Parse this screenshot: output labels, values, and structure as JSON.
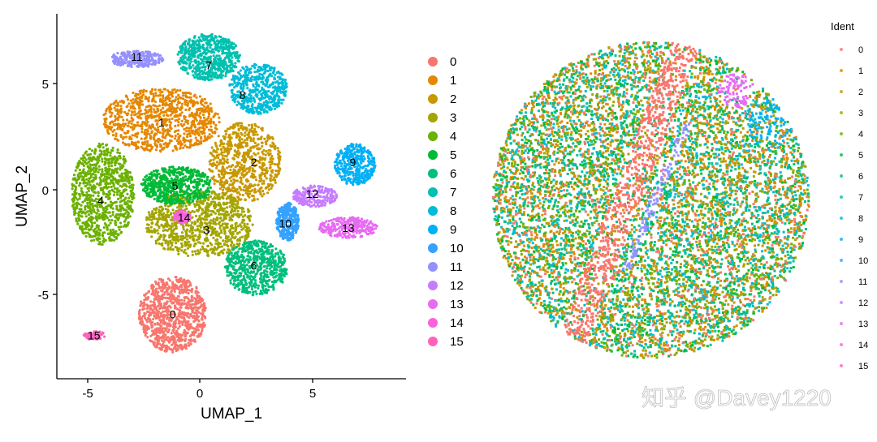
{
  "chart_data": [
    {
      "type": "scatter",
      "title": "",
      "xlabel": "UMAP_1",
      "ylabel": "UMAP_2",
      "xlim": [
        -6.3,
        9.1
      ],
      "ylim": [
        -9.1,
        8.2
      ],
      "xticks": [
        -5,
        0,
        5
      ],
      "yticks": [
        -5,
        0,
        5
      ],
      "grid": false,
      "legend_position": "right",
      "legend": [
        "0",
        "1",
        "2",
        "3",
        "4",
        "5",
        "6",
        "7",
        "8",
        "9",
        "10",
        "11",
        "12",
        "13",
        "14",
        "15"
      ],
      "clusters": [
        {
          "id": "0",
          "label": "0",
          "color": "#F8766D",
          "cx": -1.2,
          "cy": -5.9,
          "rx": 1.5,
          "ry": 1.8,
          "n": 900
        },
        {
          "id": "1",
          "label": "1",
          "color": "#E58700",
          "cx": -1.7,
          "cy": 3.3,
          "rx": 2.6,
          "ry": 1.5,
          "n": 900
        },
        {
          "id": "2",
          "label": "2",
          "color": "#C99800",
          "cx": 2.0,
          "cy": 1.3,
          "rx": 1.6,
          "ry": 1.9,
          "n": 700
        },
        {
          "id": "3",
          "label": "3",
          "color": "#A3A500",
          "cx": 0.0,
          "cy": -1.6,
          "rx": 2.4,
          "ry": 1.6,
          "n": 900
        },
        {
          "id": "4",
          "label": "4",
          "color": "#6BB100",
          "cx": -4.3,
          "cy": -0.2,
          "rx": 1.4,
          "ry": 2.4,
          "n": 900
        },
        {
          "id": "5",
          "label": "5",
          "color": "#00BA38",
          "cx": -1.0,
          "cy": 0.2,
          "rx": 1.6,
          "ry": 0.9,
          "n": 600
        },
        {
          "id": "6",
          "label": "6",
          "color": "#00BF7D",
          "cx": 2.5,
          "cy": -3.7,
          "rx": 1.4,
          "ry": 1.3,
          "n": 600
        },
        {
          "id": "7",
          "label": "7",
          "color": "#00C0AF",
          "cx": 0.4,
          "cy": 6.3,
          "rx": 1.4,
          "ry": 1.1,
          "n": 600
        },
        {
          "id": "8",
          "label": "8",
          "color": "#00BCD8",
          "cx": 2.6,
          "cy": 4.8,
          "rx": 1.3,
          "ry": 1.2,
          "n": 500
        },
        {
          "id": "9",
          "label": "9",
          "color": "#00B0F6",
          "cx": 6.9,
          "cy": 1.2,
          "rx": 0.9,
          "ry": 1.0,
          "n": 350
        },
        {
          "id": "10",
          "label": "10",
          "color": "#35A2FF",
          "cx": 3.9,
          "cy": -1.5,
          "rx": 0.5,
          "ry": 0.9,
          "n": 300
        },
        {
          "id": "11",
          "label": "11",
          "color": "#9590FF",
          "cx": -2.8,
          "cy": 6.2,
          "rx": 1.2,
          "ry": 0.4,
          "n": 250
        },
        {
          "id": "12",
          "label": "12",
          "color": "#C77CFF",
          "cx": 5.1,
          "cy": -0.3,
          "rx": 1.0,
          "ry": 0.5,
          "n": 220
        },
        {
          "id": "13",
          "label": "13",
          "color": "#E76BF3",
          "cx": 6.6,
          "cy": -1.8,
          "rx": 1.3,
          "ry": 0.5,
          "n": 260
        },
        {
          "id": "14",
          "label": "14",
          "color": "#FA62DB",
          "cx": -0.8,
          "cy": -1.3,
          "rx": 0.4,
          "ry": 0.3,
          "n": 80
        },
        {
          "id": "15",
          "label": "15",
          "color": "#FF62BC",
          "cx": -4.7,
          "cy": -6.9,
          "rx": 0.5,
          "ry": 0.2,
          "n": 80
        }
      ],
      "label_positions": [
        {
          "id": "0",
          "x": -1.2,
          "y": -5.9
        },
        {
          "id": "1",
          "x": -1.7,
          "y": 3.2
        },
        {
          "id": "2",
          "x": 2.4,
          "y": 1.3
        },
        {
          "id": "3",
          "x": 0.3,
          "y": -1.9
        },
        {
          "id": "4",
          "x": -4.4,
          "y": -0.5
        },
        {
          "id": "5",
          "x": -1.1,
          "y": 0.2
        },
        {
          "id": "6",
          "x": 2.4,
          "y": -3.6
        },
        {
          "id": "7",
          "x": 0.4,
          "y": 5.9
        },
        {
          "id": "8",
          "x": 1.9,
          "y": 4.5
        },
        {
          "id": "9",
          "x": 6.8,
          "y": 1.3
        },
        {
          "id": "10",
          "x": 3.8,
          "y": -1.6
        },
        {
          "id": "11",
          "x": -2.8,
          "y": 6.3
        },
        {
          "id": "12",
          "x": 5.0,
          "y": -0.2
        },
        {
          "id": "13",
          "x": 6.6,
          "y": -1.8
        },
        {
          "id": "14",
          "x": -0.7,
          "y": -1.3
        },
        {
          "id": "15",
          "x": -4.7,
          "y": -6.9
        }
      ]
    },
    {
      "type": "scatter",
      "title": "",
      "description": "Spatial plot of cells colored by cluster identity, circular tissue section",
      "legend_title": "Ident",
      "legend": [
        "0",
        "1",
        "2",
        "3",
        "4",
        "5",
        "6",
        "7",
        "8",
        "9",
        "10",
        "11",
        "12",
        "13",
        "14",
        "15"
      ],
      "grid": false,
      "axes_visible": false,
      "legend_position": "right"
    }
  ],
  "umap": {
    "xlabel": "UMAP_1",
    "ylabel": "UMAP_2",
    "xtick_labels": [
      "-5",
      "0",
      "5"
    ],
    "ytick_labels": [
      "5",
      "0",
      "-5"
    ]
  },
  "legend1": {
    "items": [
      {
        "label": "0",
        "color": "#F8766D"
      },
      {
        "label": "1",
        "color": "#E58700"
      },
      {
        "label": "2",
        "color": "#C99800"
      },
      {
        "label": "3",
        "color": "#A3A500"
      },
      {
        "label": "4",
        "color": "#6BB100"
      },
      {
        "label": "5",
        "color": "#00BA38"
      },
      {
        "label": "6",
        "color": "#00BF7D"
      },
      {
        "label": "7",
        "color": "#00C0AF"
      },
      {
        "label": "8",
        "color": "#00BCD8"
      },
      {
        "label": "9",
        "color": "#00B0F6"
      },
      {
        "label": "10",
        "color": "#35A2FF"
      },
      {
        "label": "11",
        "color": "#9590FF"
      },
      {
        "label": "12",
        "color": "#C77CFF"
      },
      {
        "label": "13",
        "color": "#E76BF3"
      },
      {
        "label": "14",
        "color": "#FA62DB"
      },
      {
        "label": "15",
        "color": "#FF62BC"
      }
    ]
  },
  "legend2": {
    "title": "Ident"
  },
  "watermark": "知乎 @Davey1220"
}
